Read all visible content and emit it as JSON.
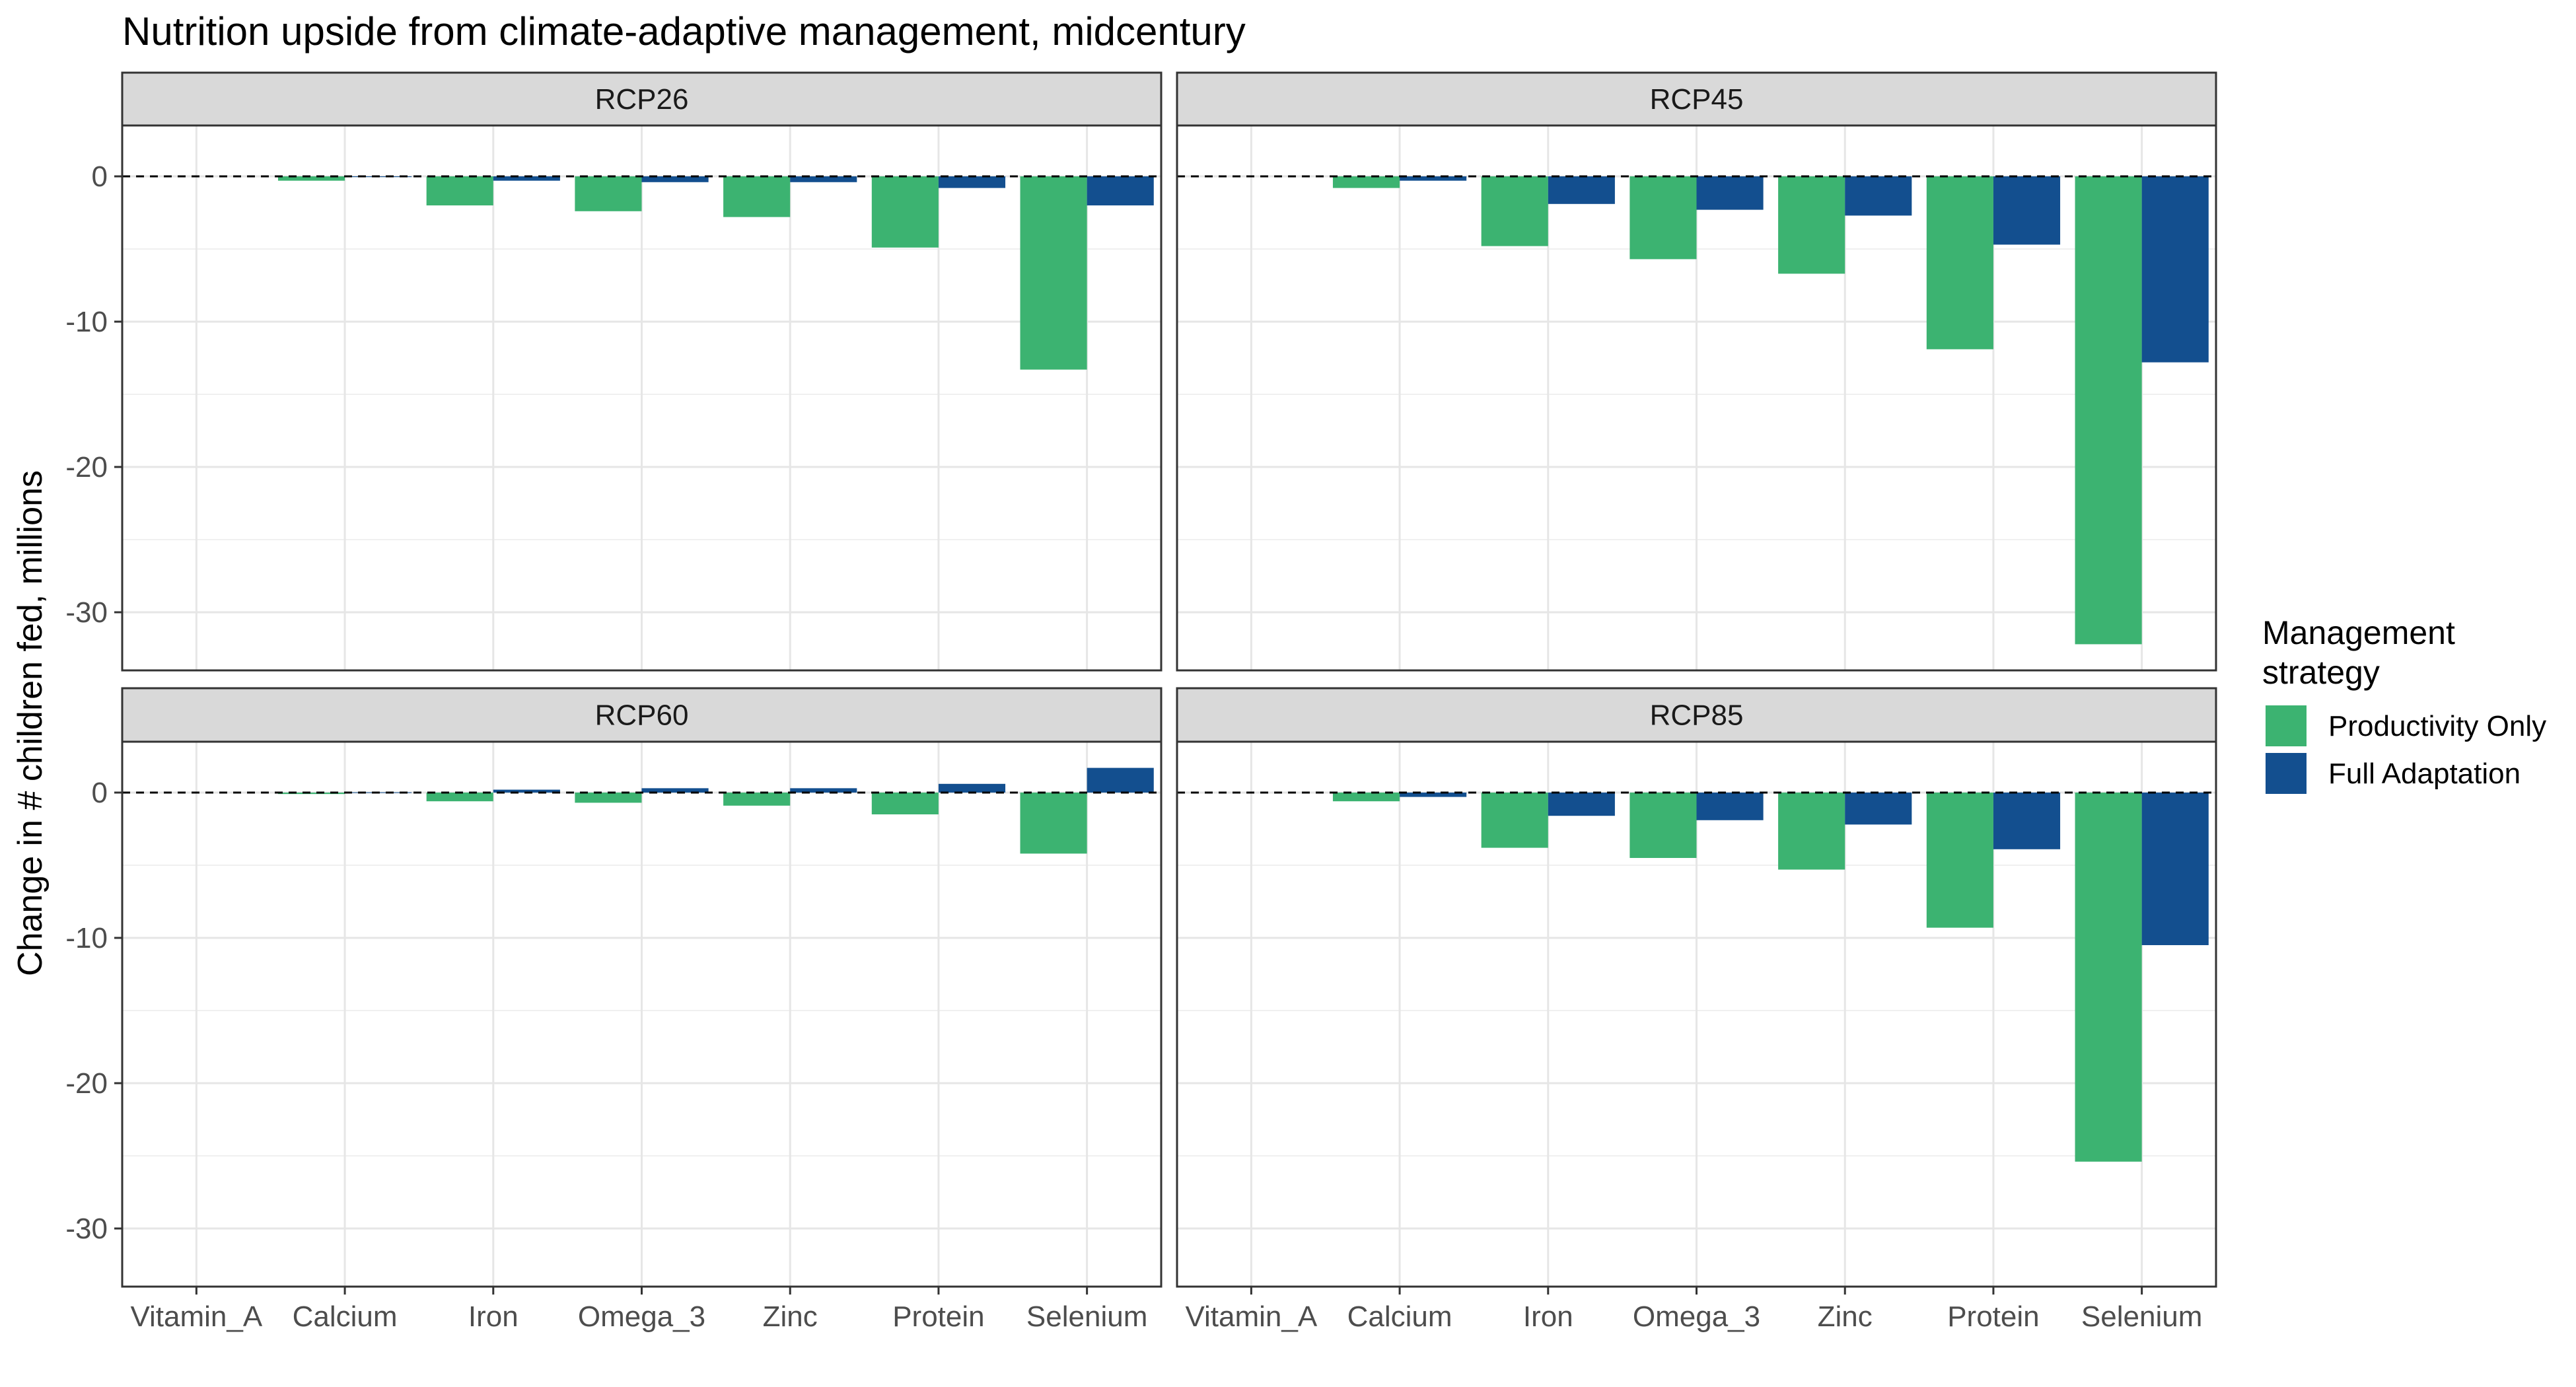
{
  "chart_data": {
    "type": "bar",
    "title": "Nutrition upside from climate-adaptive management, midcentury",
    "ylabel": "Change in # children fed, millions",
    "xlabel": "",
    "ylim": [
      -34,
      3.5
    ],
    "yticks": [
      0,
      -10,
      -20,
      -30
    ],
    "grid": true,
    "legend_position": "right",
    "legend_title_lines": [
      "Management",
      "strategy"
    ],
    "categories": [
      "Vitamin_A",
      "Calcium",
      "Iron",
      "Omega_3",
      "Zinc",
      "Protein",
      "Selenium"
    ],
    "series_colors": [
      "#3cb371",
      "#134f8f"
    ],
    "legend": [
      {
        "name": "Productivity Only",
        "color": "#3cb371"
      },
      {
        "name": "Full Adaptation",
        "color": "#134f8f"
      }
    ],
    "facets": [
      {
        "label": "RCP26",
        "series": [
          {
            "name": "Productivity Only",
            "values": [
              0,
              -0.3,
              -2.0,
              -2.4,
              -2.8,
              -4.9,
              -13.3
            ]
          },
          {
            "name": "Full Adaptation",
            "values": [
              0,
              -0.05,
              -0.3,
              -0.4,
              -0.4,
              -0.8,
              -2.0
            ]
          }
        ]
      },
      {
        "label": "RCP45",
        "series": [
          {
            "name": "Productivity Only",
            "values": [
              0,
              -0.8,
              -4.8,
              -5.7,
              -6.7,
              -11.9,
              -32.2
            ]
          },
          {
            "name": "Full Adaptation",
            "values": [
              0,
              -0.3,
              -1.9,
              -2.3,
              -2.7,
              -4.7,
              -12.8
            ]
          }
        ]
      },
      {
        "label": "RCP60",
        "series": [
          {
            "name": "Productivity Only",
            "values": [
              0,
              -0.1,
              -0.6,
              -0.7,
              -0.9,
              -1.5,
              -4.2
            ]
          },
          {
            "name": "Full Adaptation",
            "values": [
              0,
              0.02,
              0.2,
              0.3,
              0.3,
              0.6,
              1.7
            ]
          }
        ]
      },
      {
        "label": "RCP85",
        "series": [
          {
            "name": "Productivity Only",
            "values": [
              0,
              -0.6,
              -3.8,
              -4.5,
              -5.3,
              -9.3,
              -25.4
            ]
          },
          {
            "name": "Full Adaptation",
            "values": [
              0,
              -0.3,
              -1.6,
              -1.9,
              -2.2,
              -3.9,
              -10.5
            ]
          }
        ]
      }
    ]
  }
}
